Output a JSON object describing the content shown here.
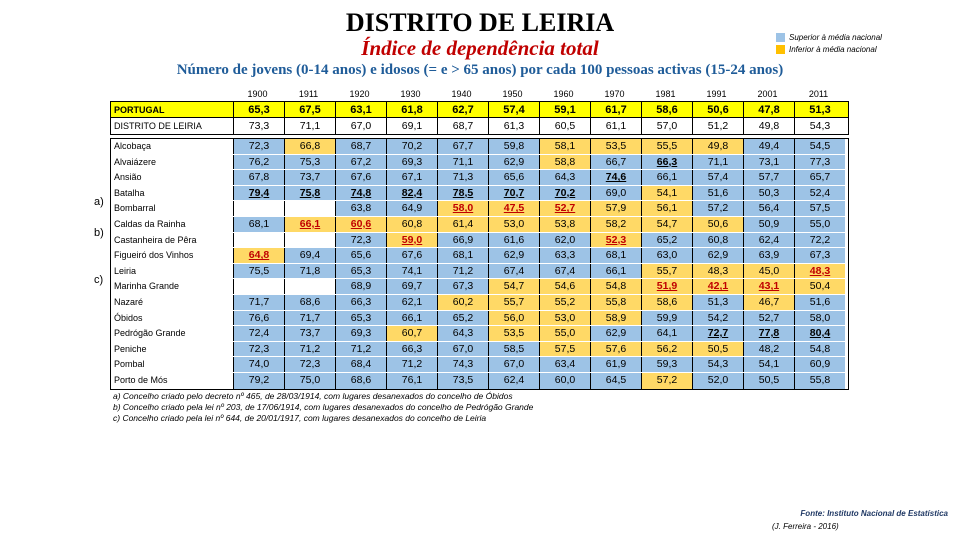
{
  "title": "DISTRITO DE LEIRIA",
  "subtitle": "Índice de dependência total",
  "description": "Número de jovens (0-14 anos) e idosos (= e > 65 anos) por cada 100 pessoas activas (15-24 anos)",
  "legend": [
    {
      "label": "Superior à média nacional",
      "color": "#9DC3E6"
    },
    {
      "label": "Inferior à média nacional",
      "color": "#FFC000"
    }
  ],
  "colors": {
    "above": "#9DC3E6",
    "below": "#FFD966",
    "highlight": "#FFFF00",
    "minimum_text": "#C00000"
  },
  "years": [
    "1900",
    "1911",
    "1920",
    "1930",
    "1940",
    "1950",
    "1960",
    "1970",
    "1981",
    "1991",
    "2001",
    "2011"
  ],
  "national": [
    {
      "name": "PORTUGAL",
      "values": [
        "65,3",
        "67,5",
        "63,1",
        "61,8",
        "62,7",
        "57,4",
        "59,1",
        "61,7",
        "58,6",
        "50,6",
        "47,8",
        "51,3"
      ]
    },
    {
      "name": "DISTRITO DE LEIRIA",
      "values": [
        "73,3",
        "71,1",
        "67,0",
        "69,1",
        "68,7",
        "61,3",
        "60,5",
        "61,1",
        "57,0",
        "51,2",
        "49,8",
        "54,3"
      ]
    }
  ],
  "municipalities": [
    {
      "name": "Alcobaça",
      "values": [
        "72,3",
        "66,8",
        "68,7",
        "70,2",
        "67,7",
        "59,8",
        "58,1",
        "53,5",
        "55,5",
        "49,8",
        "49,4",
        "54,5"
      ]
    },
    {
      "name": "Alvaiázere",
      "values": [
        "76,2",
        "75,3",
        "67,2",
        "69,3",
        "71,1",
        "62,9",
        "58,8",
        "66,7",
        "66,3",
        "71,1",
        "73,1",
        "77,3"
      ]
    },
    {
      "name": "Ansião",
      "values": [
        "67,8",
        "73,7",
        "67,6",
        "67,1",
        "71,3",
        "65,6",
        "64,3",
        "74,6",
        "66,1",
        "57,4",
        "57,7",
        "65,7"
      ]
    },
    {
      "name": "Batalha",
      "values": [
        "79,4",
        "75,8",
        "74,8",
        "82,4",
        "78,5",
        "70,7",
        "70,2",
        "69,0",
        "54,1",
        "51,6",
        "50,3",
        "52,4"
      ]
    },
    {
      "name": "Bombarral",
      "values": [
        "",
        "",
        "63,8",
        "64,9",
        "58,0",
        "47,5",
        "52,7",
        "57,9",
        "56,1",
        "57,2",
        "56,4",
        "57,5"
      ]
    },
    {
      "name": "Caldas da Rainha",
      "values": [
        "68,1",
        "66,1",
        "60,6",
        "60,8",
        "61,4",
        "53,0",
        "53,8",
        "58,2",
        "54,7",
        "50,6",
        "50,9",
        "55,0"
      ]
    },
    {
      "name": "Castanheira de Pêra",
      "values": [
        "",
        "",
        "72,3",
        "59,0",
        "66,9",
        "61,6",
        "62,0",
        "52,3",
        "65,2",
        "60,8",
        "62,4",
        "72,2"
      ]
    },
    {
      "name": "Figueiró dos Vinhos",
      "values": [
        "64,8",
        "69,4",
        "65,6",
        "67,6",
        "68,1",
        "62,9",
        "63,3",
        "68,1",
        "63,0",
        "62,9",
        "63,9",
        "67,3"
      ]
    },
    {
      "name": "Leiria",
      "values": [
        "75,5",
        "71,8",
        "65,3",
        "74,1",
        "71,2",
        "67,4",
        "67,4",
        "66,1",
        "55,7",
        "48,3",
        "45,0",
        "48,3"
      ]
    },
    {
      "name": "Marinha Grande",
      "values": [
        "",
        "",
        "68,9",
        "69,7",
        "67,3",
        "54,7",
        "54,6",
        "54,8",
        "51,9",
        "42,1",
        "43,1",
        "50,4"
      ]
    },
    {
      "name": "Nazaré",
      "values": [
        "71,7",
        "68,6",
        "66,3",
        "62,1",
        "60,2",
        "55,7",
        "55,2",
        "55,8",
        "58,6",
        "51,3",
        "46,7",
        "51,6"
      ]
    },
    {
      "name": "Óbidos",
      "values": [
        "76,6",
        "71,7",
        "65,3",
        "66,1",
        "65,2",
        "56,0",
        "53,0",
        "58,9",
        "59,9",
        "54,2",
        "52,7",
        "58,0"
      ]
    },
    {
      "name": "Pedrógão Grande",
      "values": [
        "72,4",
        "73,7",
        "69,3",
        "60,7",
        "64,3",
        "53,5",
        "55,0",
        "62,9",
        "64,1",
        "72,7",
        "77,8",
        "80,4"
      ]
    },
    {
      "name": "Peniche",
      "values": [
        "72,3",
        "71,2",
        "71,2",
        "66,3",
        "67,0",
        "58,5",
        "57,5",
        "57,6",
        "56,2",
        "50,5",
        "48,2",
        "54,8"
      ]
    },
    {
      "name": "Pombal",
      "values": [
        "74,0",
        "72,3",
        "68,4",
        "71,2",
        "74,3",
        "67,0",
        "63,4",
        "61,9",
        "59,3",
        "54,3",
        "54,1",
        "60,9"
      ]
    },
    {
      "name": "Porto de Mós",
      "values": [
        "79,2",
        "75,0",
        "68,6",
        "76,1",
        "73,5",
        "62,4",
        "60,0",
        "64,5",
        "57,2",
        "52,0",
        "50,5",
        "55,8"
      ]
    }
  ],
  "row_markers": [
    {
      "label": "a)",
      "row": "Bombarral"
    },
    {
      "label": "b)",
      "row": "Castanheira de Pêra"
    },
    {
      "label": "c)",
      "row": "Marinha Grande"
    }
  ],
  "notes": [
    "a) Concelho criado pelo decreto nº 465, de 28/03/1914, com lugares desanexados do concelho de Óbidos",
    "b) Concelho criado pela lei nº 203, de 17/06/1914, com lugares desanexados do concelho de Pedrógão Grande",
    "c) Concelho criado pela lei nº 644, de 20/01/1917, com lugares desanexados do concelho de Leiria"
  ],
  "source": "Fonte: Instituto Nacional de Estatística",
  "author": "(J. Ferreira - 2016)"
}
